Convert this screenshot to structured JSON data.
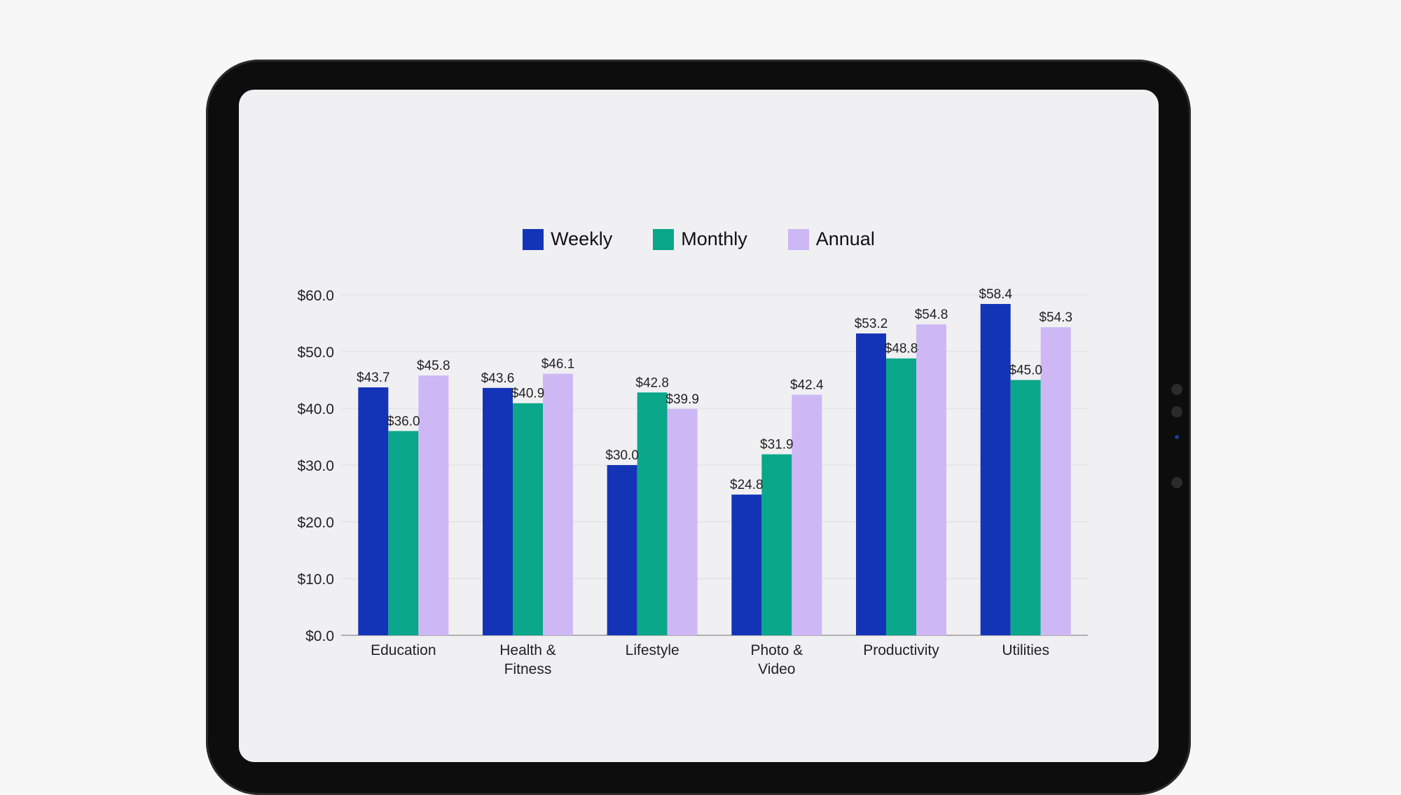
{
  "chart_data": {
    "type": "bar",
    "categories": [
      "Education",
      "Health & Fitness",
      "Lifestyle",
      "Photo & Video",
      "Productivity",
      "Utilities"
    ],
    "category_lines": [
      [
        "Education"
      ],
      [
        "Health &",
        "Fitness"
      ],
      [
        "Lifestyle"
      ],
      [
        "Photo &",
        "Video"
      ],
      [
        "Productivity"
      ],
      [
        "Utilities"
      ]
    ],
    "series": [
      {
        "name": "Weekly",
        "color": "#1434b8",
        "values": [
          43.7,
          43.6,
          30.0,
          24.8,
          53.2,
          58.4
        ]
      },
      {
        "name": "Monthly",
        "color": "#0aa78a",
        "values": [
          36.0,
          40.9,
          42.8,
          31.9,
          48.8,
          45.0
        ]
      },
      {
        "name": "Annual",
        "color": "#cdb8f5",
        "values": [
          45.8,
          46.1,
          39.9,
          42.4,
          54.8,
          54.3
        ]
      }
    ],
    "ylim": [
      0,
      60
    ],
    "yticks": [
      0,
      10,
      20,
      30,
      40,
      50,
      60
    ],
    "ytick_labels": [
      "$0.0",
      "$10.0",
      "$20.0",
      "$30.0",
      "$40.0",
      "$50.0",
      "$60.0"
    ],
    "value_prefix": "$",
    "legend_position": "top-center",
    "grid": true,
    "title": "",
    "xlabel": "",
    "ylabel": ""
  }
}
